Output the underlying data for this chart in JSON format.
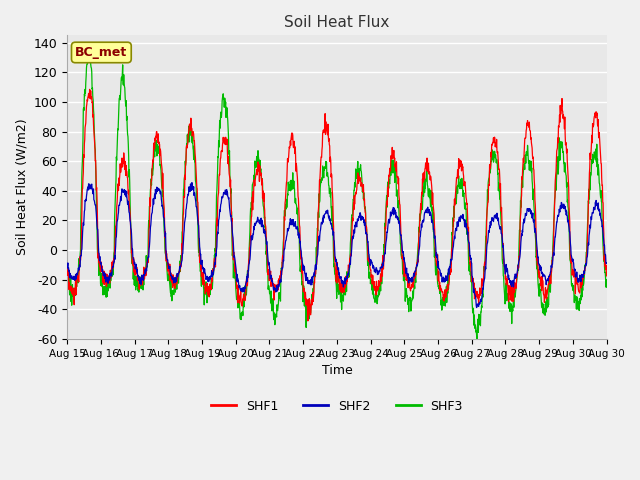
{
  "title": "Soil Heat Flux",
  "ylabel": "Soil Heat Flux (W/m2)",
  "xlabel": "Time",
  "ylim": [
    -60,
    145
  ],
  "yticks": [
    -60,
    -40,
    -20,
    0,
    20,
    40,
    60,
    80,
    100,
    120,
    140
  ],
  "colors": {
    "SHF1": "#ff0000",
    "SHF2": "#0000bb",
    "SHF3": "#00bb00"
  },
  "bg_color": "#e8e8e8",
  "fig_bg_color": "#f0f0f0",
  "annotation_text": "BC_met",
  "annotation_bg": "#ffff99",
  "annotation_border": "#888800",
  "days": [
    "Aug 15",
    "Aug 16",
    "Aug 17",
    "Aug 18",
    "Aug 19",
    "Aug 20",
    "Aug 21",
    "Aug 22",
    "Aug 23",
    "Aug 24",
    "Aug 25",
    "Aug 26",
    "Aug 27",
    "Aug 28",
    "Aug 29",
    "Aug 30"
  ],
  "n_points_per_day": 96,
  "shf1_day_peaks": [
    108,
    60,
    78,
    85,
    75,
    55,
    75,
    85,
    47,
    63,
    57,
    57,
    74,
    86,
    95,
    92
  ],
  "shf1_night_troughs": [
    -30,
    -22,
    -22,
    -22,
    -27,
    -35,
    -25,
    -40,
    -25,
    -25,
    -25,
    -30,
    -33,
    -30,
    -30,
    -25
  ],
  "shf2_day_peaks": [
    44,
    40,
    42,
    43,
    40,
    20,
    19,
    25,
    23,
    27,
    27,
    22,
    23,
    27,
    31,
    30
  ],
  "shf2_night_troughs": [
    -20,
    -20,
    -20,
    -20,
    -20,
    -28,
    -27,
    -22,
    -22,
    -15,
    -20,
    -20,
    -37,
    -22,
    -20,
    -20
  ],
  "shf3_day_peaks": [
    132,
    115,
    70,
    80,
    102,
    60,
    45,
    57,
    55,
    55,
    45,
    45,
    65,
    65,
    70,
    65
  ],
  "shf3_night_troughs": [
    -30,
    -28,
    -25,
    -27,
    -30,
    -42,
    -43,
    -42,
    -32,
    -32,
    -36,
    -35,
    -53,
    -40,
    -42,
    -38
  ],
  "line_width": 0.9,
  "figsize": [
    6.4,
    4.8
  ],
  "dpi": 100
}
